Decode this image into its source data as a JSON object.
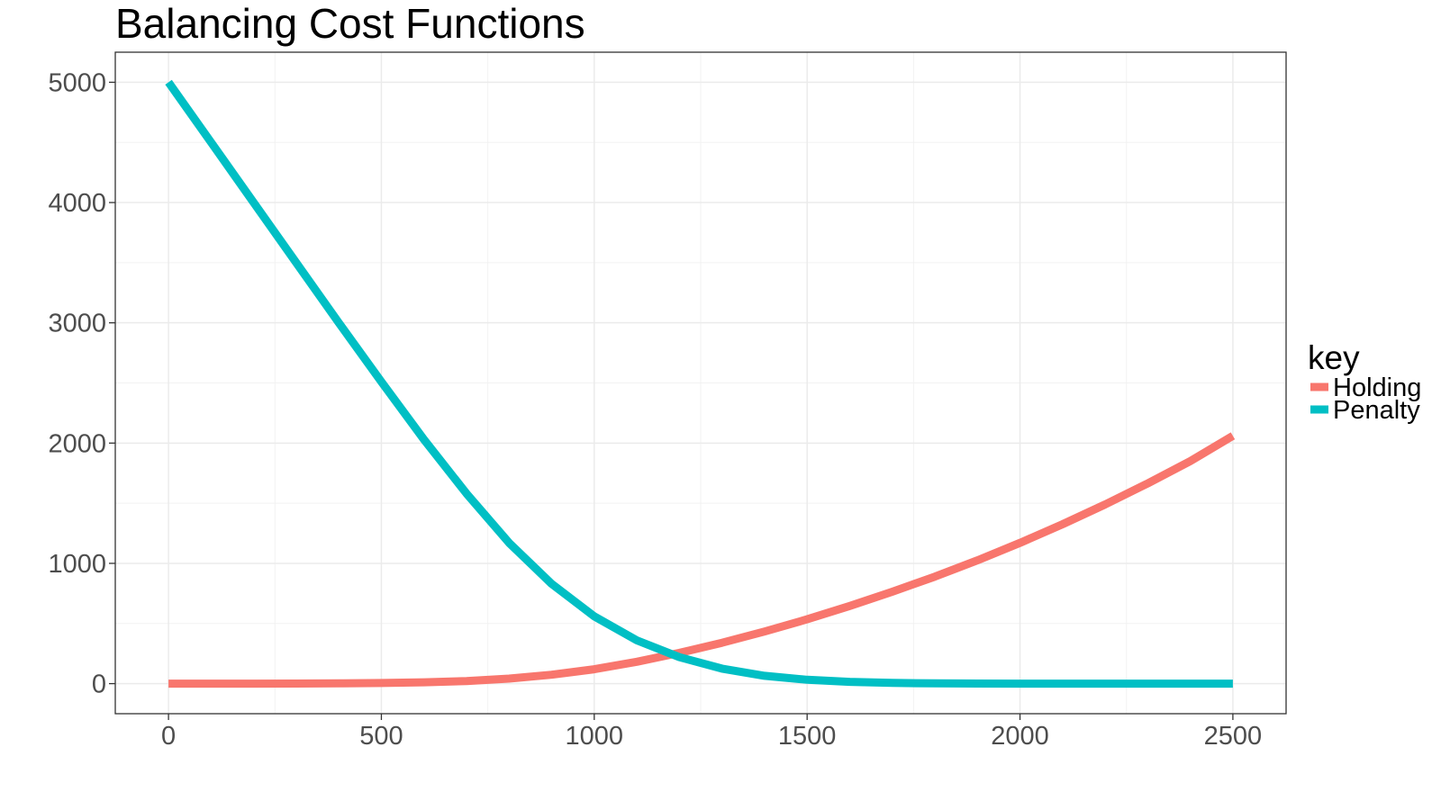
{
  "chart_data": {
    "type": "line",
    "title": "Balancing Cost Functions",
    "xlabel": "",
    "ylabel": "",
    "xlim": [
      -125,
      2625
    ],
    "ylim": [
      -250,
      5250
    ],
    "x_ticks": [
      0,
      500,
      1000,
      1500,
      2000,
      2500
    ],
    "y_ticks": [
      0,
      1000,
      2000,
      3000,
      4000,
      5000
    ],
    "x_minor": [
      250,
      750,
      1250,
      1750,
      2250
    ],
    "y_minor": [
      500,
      1500,
      2500,
      3500,
      4500
    ],
    "grid": true,
    "legend": {
      "title": "key",
      "placement": "right"
    },
    "x": [
      0,
      100,
      200,
      300,
      400,
      500,
      600,
      700,
      800,
      900,
      1000,
      1100,
      1200,
      1300,
      1400,
      1500,
      1600,
      1700,
      1800,
      1900,
      2000,
      2100,
      2200,
      2300,
      2400,
      2500
    ],
    "series": [
      {
        "name": "Holding",
        "color": "#F8766D",
        "values": [
          0,
          0,
          0,
          1,
          2,
          5,
          11,
          22,
          42,
          74,
          120,
          182,
          256,
          340,
          433,
          535,
          646,
          764,
          890,
          1025,
          1170,
          1325,
          1490,
          1665,
          1850,
          2060
        ]
      },
      {
        "name": "Penalty",
        "color": "#00BFC4",
        "values": [
          5000,
          4500,
          4000,
          3500,
          3000,
          2510,
          2030,
          1580,
          1170,
          830,
          560,
          360,
          220,
          125,
          65,
          32,
          15,
          6,
          2,
          1,
          0,
          0,
          0,
          0,
          0,
          0
        ]
      }
    ]
  }
}
